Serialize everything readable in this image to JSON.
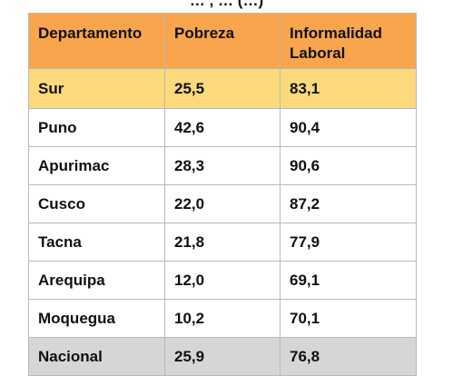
{
  "title_fragment": "… , … (…)",
  "table": {
    "headers": [
      "Departamento",
      "Pobreza",
      "Informalidad Laboral"
    ],
    "rows": [
      [
        "Sur",
        "25,5",
        "83,1"
      ],
      [
        "Puno",
        "42,6",
        "90,4"
      ],
      [
        "Apurimac",
        "28,3",
        "90,6"
      ],
      [
        "Cusco",
        "22,0",
        "87,2"
      ],
      [
        "Tacna",
        "21,8",
        "77,9"
      ],
      [
        "Arequipa",
        "12,0",
        "69,1"
      ],
      [
        "Moquegua",
        "10,2",
        "70,1"
      ],
      [
        "Nacional",
        "25,9",
        "76,8"
      ]
    ]
  },
  "colors": {
    "header_bg": "#f8a54d",
    "highlight_row_bg": "#fcd97a",
    "total_row_bg": "#d6d6d6",
    "border": "#b9b9b9"
  }
}
